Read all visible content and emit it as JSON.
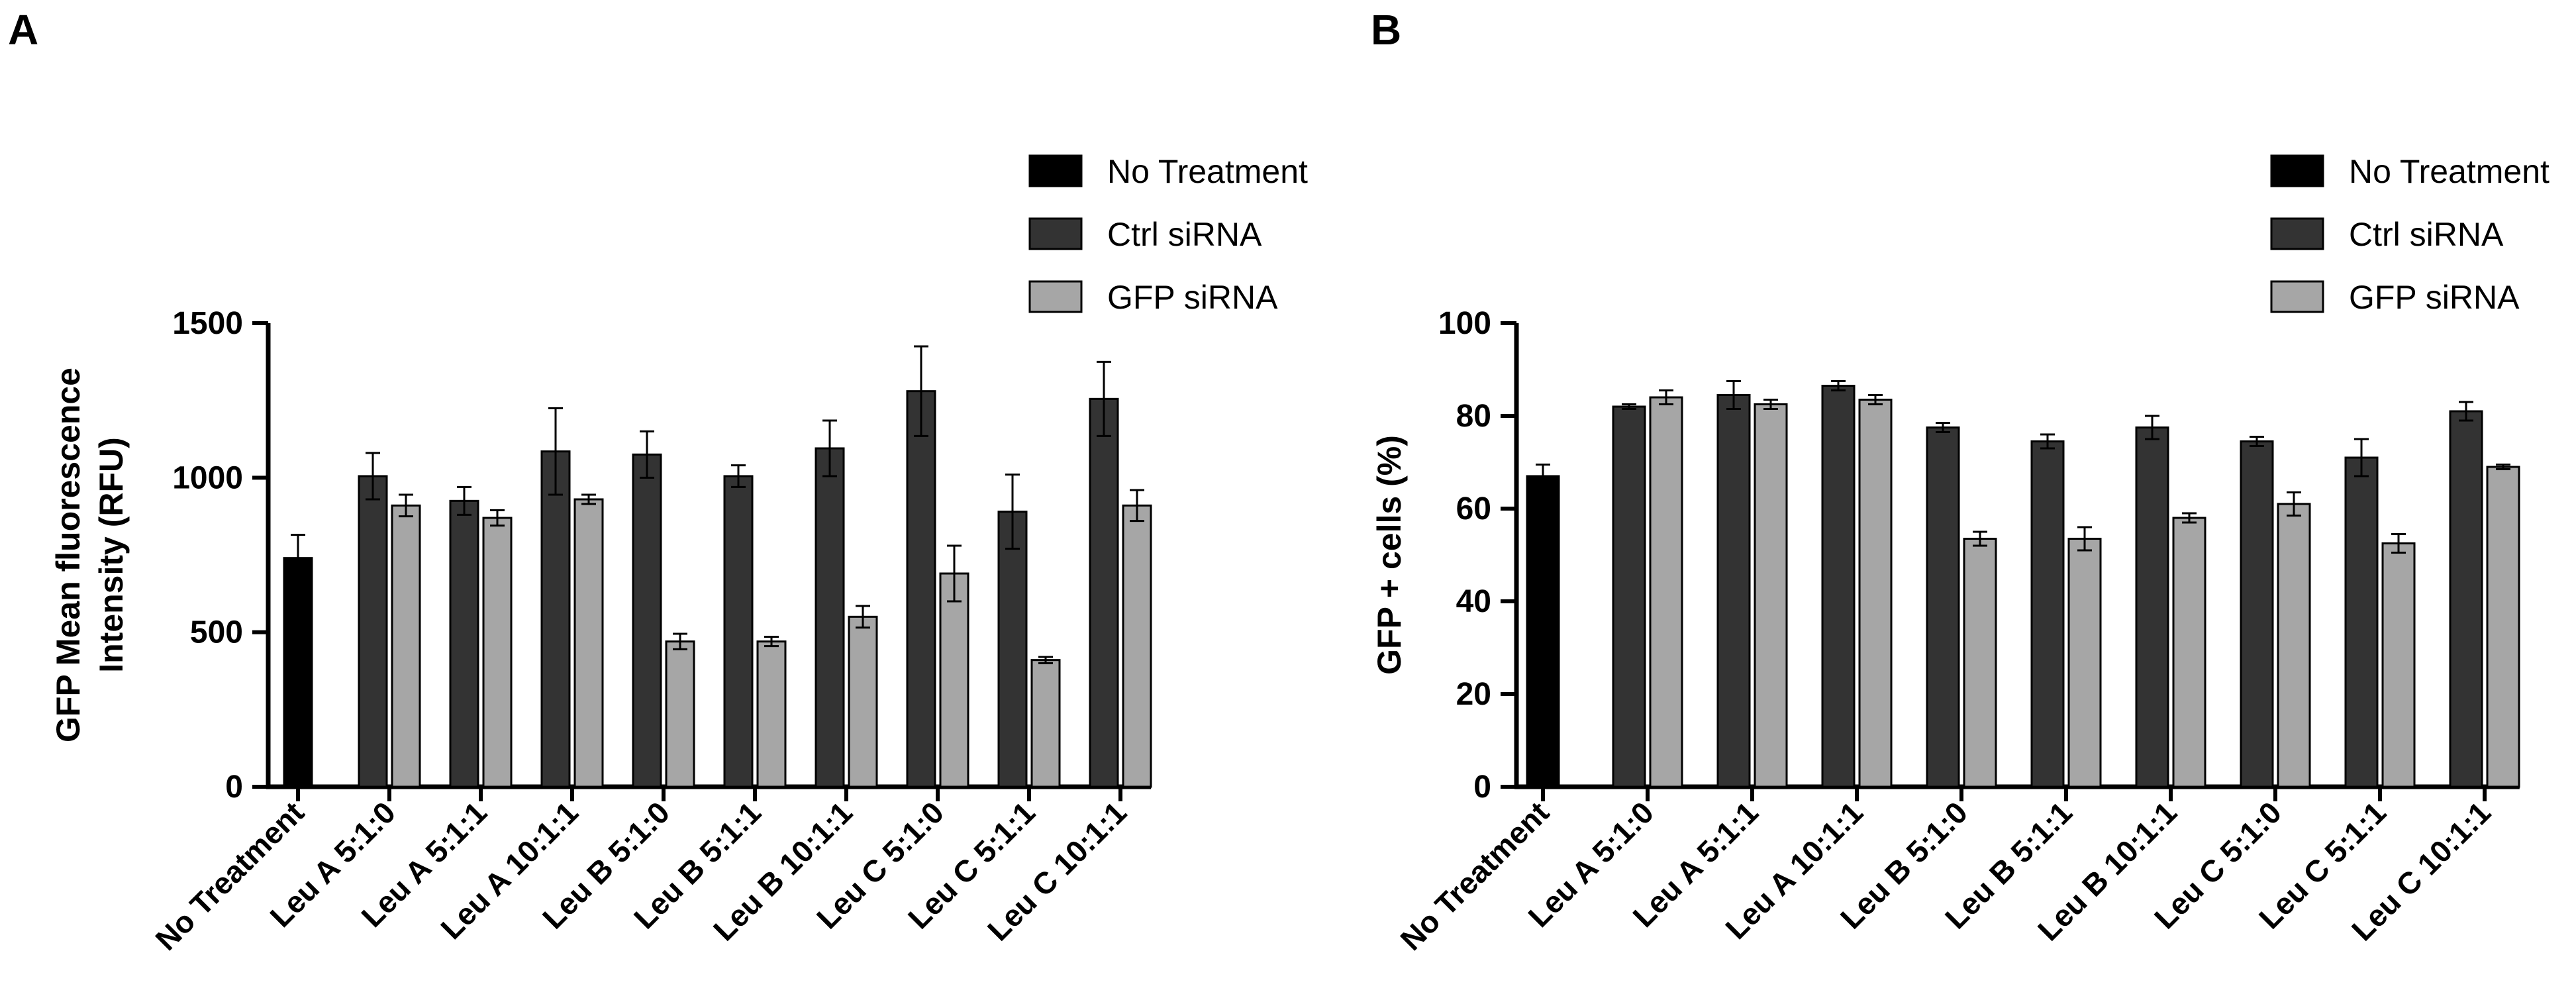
{
  "panels": [
    {
      "letter": "A",
      "chart_data": {
        "type": "bar",
        "categories": [
          "No Treatment",
          "Leu A 5:1:0",
          "Leu A 5:1:1",
          "Leu A 10:1:1",
          "Leu B 5:1:0",
          "Leu B 5:1:1",
          "Leu B 10:1:1",
          "Leu C 5:1:0",
          "Leu C 5:1:1",
          "Leu C 10:1:1"
        ],
        "series": [
          {
            "name": "No Treatment",
            "color": "#000000",
            "values": [
              740,
              null,
              null,
              null,
              null,
              null,
              null,
              null,
              null,
              null
            ],
            "errors": [
              75,
              null,
              null,
              null,
              null,
              null,
              null,
              null,
              null,
              null
            ]
          },
          {
            "name": "Ctrl siRNA",
            "color": "#333333",
            "values": [
              null,
              1005,
              925,
              1085,
              1075,
              1005,
              1095,
              1280,
              890,
              1255
            ],
            "errors": [
              null,
              75,
              45,
              140,
              75,
              35,
              90,
              145,
              120,
              120
            ]
          },
          {
            "name": "GFP siRNA",
            "color": "#a6a6a6",
            "values": [
              null,
              910,
              870,
              930,
              470,
              470,
              550,
              690,
              410,
              910
            ],
            "errors": [
              null,
              35,
              25,
              15,
              25,
              15,
              35,
              90,
              10,
              50
            ]
          }
        ],
        "yticks": [
          0,
          500,
          1000,
          1500
        ],
        "ylim": [
          0,
          1500
        ],
        "ylabel_line1": "GFP Mean fluorescence",
        "ylabel_line2": "Intensity (RFU)",
        "legend": [
          "No Treatment",
          "Ctrl siRNA",
          "GFP siRNA"
        ],
        "legend_position": "top-right"
      }
    },
    {
      "letter": "B",
      "chart_data": {
        "type": "bar",
        "categories": [
          "No Treatment",
          "Leu A 5:1:0",
          "Leu A 5:1:1",
          "Leu A 10:1:1",
          "Leu B 5:1:0",
          "Leu B 5:1:1",
          "Leu B 10:1:1",
          "Leu C 5:1:0",
          "Leu C 5:1:1",
          "Leu C 10:1:1"
        ],
        "series": [
          {
            "name": "No Treatment",
            "color": "#000000",
            "values": [
              67,
              null,
              null,
              null,
              null,
              null,
              null,
              null,
              null,
              null
            ],
            "errors": [
              2.5,
              null,
              null,
              null,
              null,
              null,
              null,
              null,
              null,
              null
            ]
          },
          {
            "name": "Ctrl siRNA",
            "color": "#333333",
            "values": [
              null,
              82,
              84.5,
              86.5,
              77.5,
              74.5,
              77.5,
              74.5,
              71,
              81
            ],
            "errors": [
              null,
              0.5,
              3,
              1,
              1,
              1.5,
              2.5,
              1,
              4,
              2
            ]
          },
          {
            "name": "GFP siRNA",
            "color": "#a6a6a6",
            "values": [
              null,
              84,
              82.5,
              83.5,
              53.5,
              53.5,
              58,
              61,
              52.5,
              69
            ],
            "errors": [
              null,
              1.5,
              1,
              1,
              1.5,
              2.5,
              1,
              2.5,
              2,
              0.5
            ]
          }
        ],
        "yticks": [
          0,
          20,
          40,
          60,
          80,
          100
        ],
        "ylim": [
          0,
          100
        ],
        "ylabel_line1": "GFP + cells (%)",
        "ylabel_line2": "",
        "legend": [
          "No Treatment",
          "Ctrl siRNA",
          "GFP siRNA"
        ],
        "legend_position": "top-right"
      }
    }
  ]
}
